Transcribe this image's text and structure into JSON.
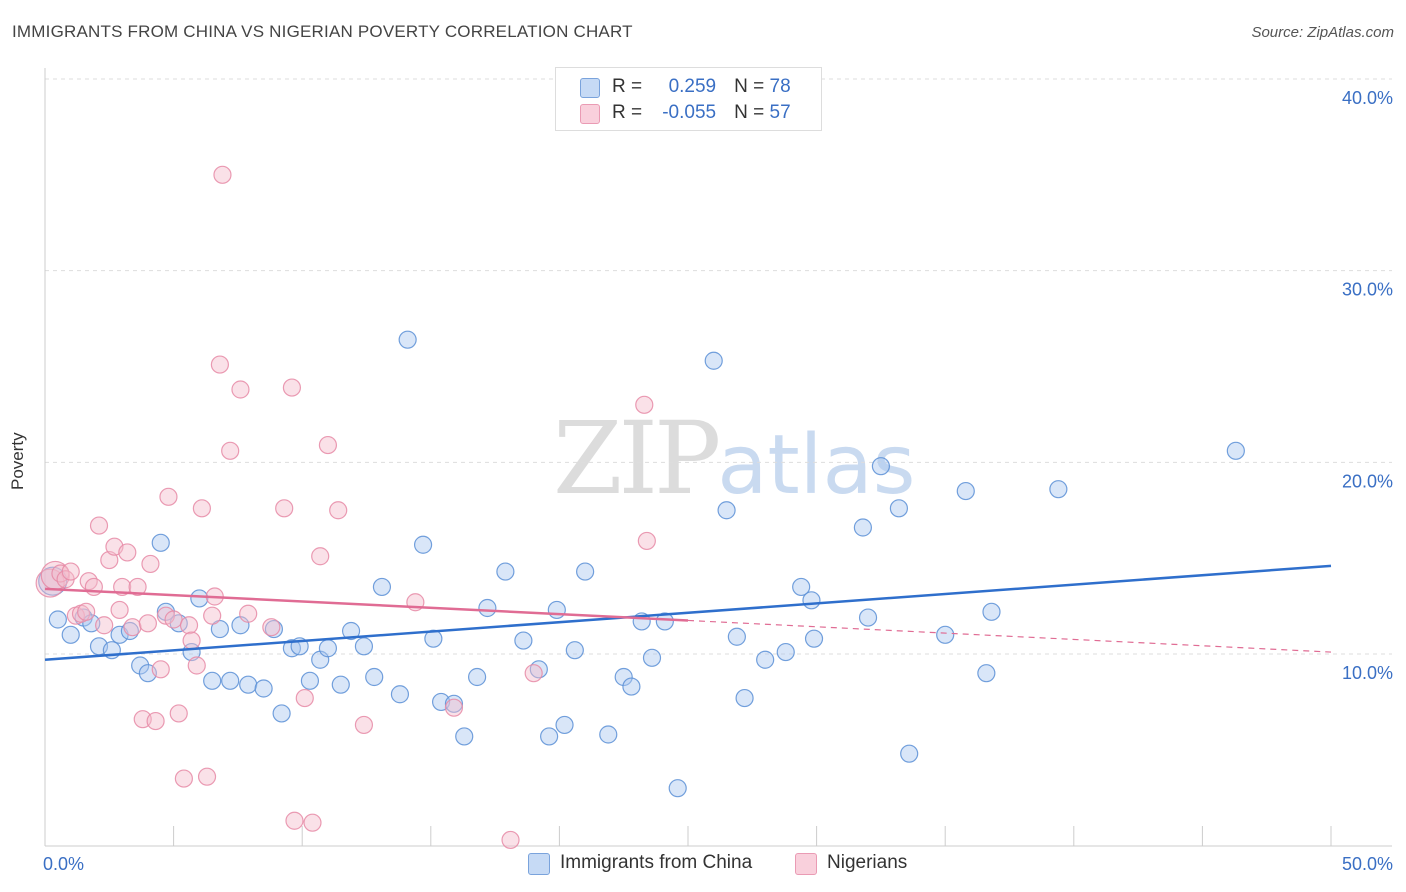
{
  "header": {
    "title": "IMMIGRANTS FROM CHINA VS NIGERIAN POVERTY CORRELATION CHART",
    "source": "Source: ZipAtlas.com"
  },
  "watermark": {
    "zip": "ZIP",
    "atlas": "atlas"
  },
  "legend_top": {
    "rows": [
      {
        "r_label": "R =",
        "r_value": "0.259",
        "n_label": "N =",
        "n_value": "78"
      },
      {
        "r_label": "R =",
        "r_value": "-0.055",
        "n_label": "N =",
        "n_value": "57"
      }
    ]
  },
  "legend_bottom": {
    "items": [
      "Immigrants from China",
      "Nigerians"
    ]
  },
  "colors": {
    "blue_fill": "#aac8f0",
    "blue_stroke": "#5a8fd6",
    "blue_line": "#2f6fcc",
    "pink_fill": "#f5bccd",
    "pink_stroke": "#e68aa6",
    "pink_line": "#e06c94",
    "axis_label": "#3a6fc4",
    "grid": "#dddddd"
  },
  "chart_data": {
    "type": "scatter",
    "title": "IMMIGRANTS FROM CHINA VS NIGERIAN POVERTY CORRELATION CHART",
    "xlabel": "",
    "ylabel": "Poverty",
    "xlim": [
      0,
      50
    ],
    "ylim": [
      0,
      40
    ],
    "x_tick_labels": [
      "0.0%",
      "50.0%"
    ],
    "y_ticks": [
      10,
      20,
      30,
      40
    ],
    "y_tick_labels": [
      "10.0%",
      "20.0%",
      "30.0%",
      "40.0%"
    ],
    "grid": "horizontal dashed",
    "legend_position": "top-center",
    "series": [
      {
        "name": "Immigrants from China",
        "color": "#aac8f0",
        "r": 0.259,
        "n": 78,
        "trend": {
          "x": [
            0,
            50
          ],
          "y": [
            9.7,
            14.6
          ]
        },
        "points": [
          [
            0.3,
            13.8
          ],
          [
            0.5,
            11.8
          ],
          [
            1.0,
            11.0
          ],
          [
            1.5,
            11.9
          ],
          [
            1.8,
            11.6
          ],
          [
            2.1,
            10.4
          ],
          [
            2.6,
            10.2
          ],
          [
            2.9,
            11.0
          ],
          [
            3.3,
            11.2
          ],
          [
            3.7,
            9.4
          ],
          [
            4.0,
            9.0
          ],
          [
            4.5,
            15.8
          ],
          [
            4.7,
            12.2
          ],
          [
            5.2,
            11.6
          ],
          [
            5.7,
            10.1
          ],
          [
            6.0,
            12.9
          ],
          [
            6.5,
            8.6
          ],
          [
            6.8,
            11.3
          ],
          [
            7.2,
            8.6
          ],
          [
            7.6,
            11.5
          ],
          [
            7.9,
            8.4
          ],
          [
            8.5,
            8.2
          ],
          [
            8.9,
            11.3
          ],
          [
            9.2,
            6.9
          ],
          [
            9.6,
            10.3
          ],
          [
            9.9,
            10.4
          ],
          [
            10.3,
            8.6
          ],
          [
            10.7,
            9.7
          ],
          [
            11.0,
            10.3
          ],
          [
            11.5,
            8.4
          ],
          [
            11.9,
            11.2
          ],
          [
            12.4,
            10.4
          ],
          [
            12.8,
            8.8
          ],
          [
            13.1,
            13.5
          ],
          [
            13.8,
            7.9
          ],
          [
            14.1,
            26.4
          ],
          [
            14.7,
            15.7
          ],
          [
            15.1,
            10.8
          ],
          [
            15.4,
            7.5
          ],
          [
            15.9,
            7.4
          ],
          [
            16.3,
            5.7
          ],
          [
            16.8,
            8.8
          ],
          [
            17.2,
            12.4
          ],
          [
            17.9,
            14.3
          ],
          [
            18.6,
            10.7
          ],
          [
            19.2,
            9.2
          ],
          [
            19.6,
            5.7
          ],
          [
            19.9,
            12.3
          ],
          [
            20.2,
            6.3
          ],
          [
            20.6,
            10.2
          ],
          [
            21.0,
            14.3
          ],
          [
            21.9,
            5.8
          ],
          [
            22.5,
            8.8
          ],
          [
            22.8,
            8.3
          ],
          [
            23.2,
            11.7
          ],
          [
            23.6,
            9.8
          ],
          [
            24.1,
            11.7
          ],
          [
            24.6,
            3.0
          ],
          [
            26.0,
            25.3
          ],
          [
            26.5,
            17.5
          ],
          [
            26.9,
            10.9
          ],
          [
            27.2,
            7.7
          ],
          [
            28.0,
            9.7
          ],
          [
            28.8,
            10.1
          ],
          [
            29.4,
            13.5
          ],
          [
            29.8,
            12.8
          ],
          [
            29.9,
            10.8
          ],
          [
            31.8,
            16.6
          ],
          [
            32.0,
            11.9
          ],
          [
            32.5,
            19.8
          ],
          [
            33.2,
            17.6
          ],
          [
            33.6,
            4.8
          ],
          [
            35.0,
            11.0
          ],
          [
            35.8,
            18.5
          ],
          [
            36.6,
            9.0
          ],
          [
            36.8,
            12.2
          ],
          [
            39.4,
            18.6
          ],
          [
            46.3,
            20.6
          ]
        ]
      },
      {
        "name": "Nigerians",
        "color": "#f5bccd",
        "r": -0.055,
        "n": 57,
        "trend": {
          "x": [
            0,
            50
          ],
          "y": [
            13.4,
            10.1
          ],
          "solid_until_x": 25
        },
        "points": [
          [
            0.2,
            13.7
          ],
          [
            0.4,
            14.1
          ],
          [
            0.6,
            14.2
          ],
          [
            0.8,
            13.9
          ],
          [
            1.0,
            14.3
          ],
          [
            1.2,
            12.0
          ],
          [
            1.4,
            12.1
          ],
          [
            1.6,
            12.2
          ],
          [
            1.7,
            13.8
          ],
          [
            1.9,
            13.5
          ],
          [
            2.1,
            16.7
          ],
          [
            2.3,
            11.5
          ],
          [
            2.5,
            14.9
          ],
          [
            2.7,
            15.6
          ],
          [
            2.9,
            12.3
          ],
          [
            3.0,
            13.5
          ],
          [
            3.2,
            15.3
          ],
          [
            3.4,
            11.4
          ],
          [
            3.6,
            13.5
          ],
          [
            3.8,
            6.6
          ],
          [
            4.0,
            11.6
          ],
          [
            4.1,
            14.7
          ],
          [
            4.3,
            6.5
          ],
          [
            4.5,
            9.2
          ],
          [
            4.7,
            12.0
          ],
          [
            4.8,
            18.2
          ],
          [
            5.0,
            11.8
          ],
          [
            5.2,
            6.9
          ],
          [
            5.4,
            3.5
          ],
          [
            5.6,
            11.5
          ],
          [
            5.7,
            10.7
          ],
          [
            5.9,
            9.4
          ],
          [
            6.1,
            17.6
          ],
          [
            6.3,
            3.6
          ],
          [
            6.5,
            12.0
          ],
          [
            6.6,
            13.0
          ],
          [
            6.8,
            25.1
          ],
          [
            6.9,
            35.0
          ],
          [
            7.2,
            20.6
          ],
          [
            7.6,
            23.8
          ],
          [
            7.9,
            12.1
          ],
          [
            8.8,
            11.4
          ],
          [
            9.3,
            17.6
          ],
          [
            9.6,
            23.9
          ],
          [
            9.7,
            1.3
          ],
          [
            10.1,
            7.7
          ],
          [
            10.4,
            1.2
          ],
          [
            10.7,
            15.1
          ],
          [
            11.0,
            20.9
          ],
          [
            11.4,
            17.5
          ],
          [
            12.4,
            6.3
          ],
          [
            14.4,
            12.7
          ],
          [
            15.9,
            7.2
          ],
          [
            18.1,
            0.3
          ],
          [
            19.0,
            9.0
          ],
          [
            23.3,
            23.0
          ],
          [
            23.4,
            15.9
          ]
        ]
      }
    ]
  }
}
